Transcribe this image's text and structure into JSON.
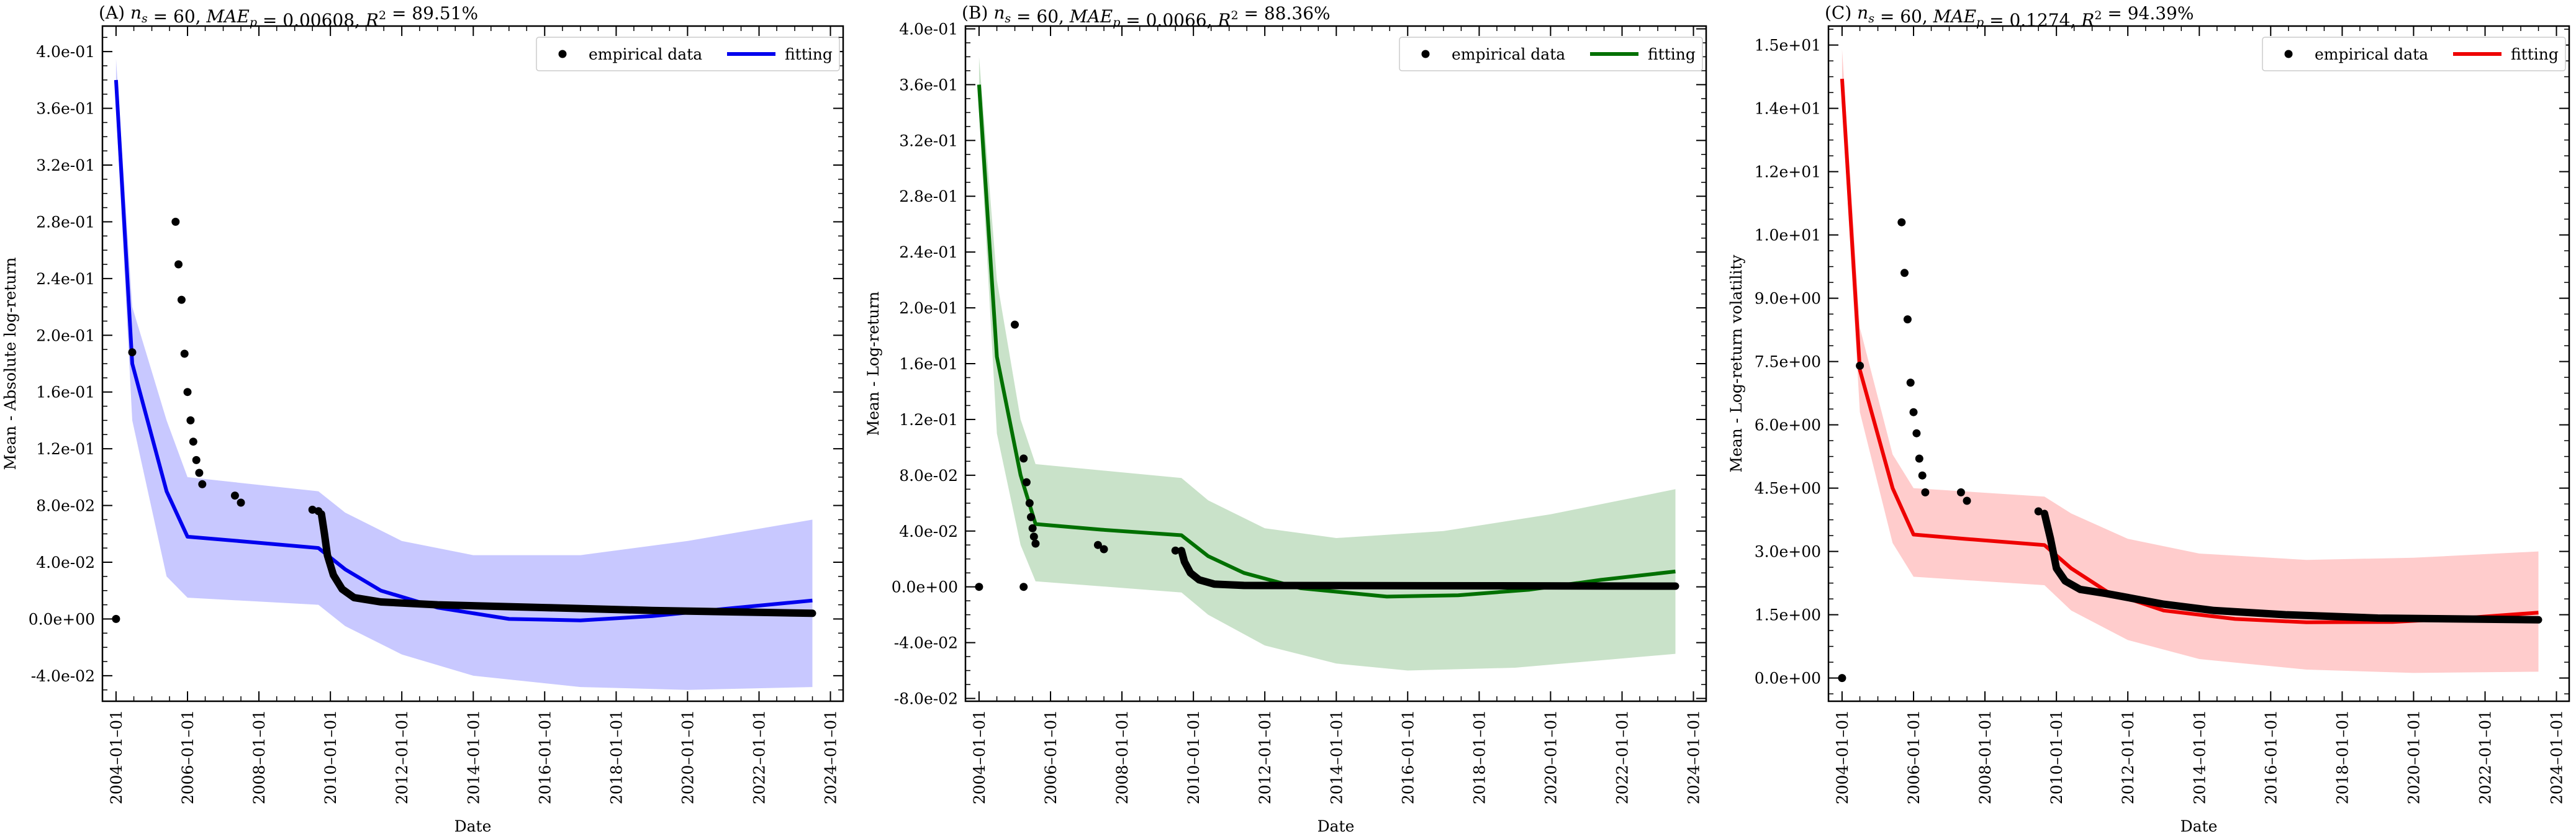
{
  "chart_data": [
    {
      "type": "line",
      "panel": "A",
      "title": "(A) n_s = 60, MAE_p = 0.00608, R^2 = 89.51%",
      "title_parts": {
        "prefix": "(A) ",
        "ns": "60",
        "mae": "0.00608",
        "r2": "89.51%"
      },
      "xlabel": "Date",
      "ylabel": "Mean - Absolute log-return",
      "xlim": [
        "2003-08-15",
        "2024-05-10"
      ],
      "ylim": [
        -0.058,
        0.418
      ],
      "x_ticks": [
        "2004-01-01",
        "2006-01-01",
        "2008-01-01",
        "2010-01-01",
        "2012-01-01",
        "2014-01-01",
        "2016-01-01",
        "2018-01-01",
        "2020-01-01",
        "2022-01-01",
        "2024-01-01"
      ],
      "x_tick_labels": [
        "2004–01–01",
        "2006–01–01",
        "2008–01–01",
        "2010–01–01",
        "2012–01–01",
        "2014–01–01",
        "2016–01–01",
        "2018–01–01",
        "2020–01–01",
        "2022–01–01",
        "2024–01–01"
      ],
      "y_ticks": [
        -0.04,
        0.0,
        0.04,
        0.08,
        0.12,
        0.16,
        0.2,
        0.24,
        0.28,
        0.32,
        0.36,
        0.4
      ],
      "y_tick_labels": [
        "-4.0e-02",
        "0.0e+00",
        "4.0e-02",
        "8.0e-02",
        "1.2e-01",
        "1.6e-01",
        "2.0e-01",
        "2.4e-01",
        "2.8e-01",
        "3.2e-01",
        "3.6e-01",
        "4.0e-01"
      ],
      "legend": {
        "position": "top-right",
        "empirical": "empirical data",
        "fitting": "fitting"
      },
      "color": "#0000ee",
      "band_color": "#c8c8ff",
      "empirical_scatter": [
        {
          "date": "2004-01-01",
          "value": 0.0
        },
        {
          "date": "2004-06-15",
          "value": 0.188
        },
        {
          "date": "2005-09-01",
          "value": 0.28
        },
        {
          "date": "2005-10-01",
          "value": 0.25
        },
        {
          "date": "2005-11-01",
          "value": 0.225
        },
        {
          "date": "2005-12-01",
          "value": 0.187
        },
        {
          "date": "2006-01-01",
          "value": 0.16
        },
        {
          "date": "2006-02-01",
          "value": 0.14
        },
        {
          "date": "2006-03-01",
          "value": 0.125
        },
        {
          "date": "2006-04-01",
          "value": 0.112
        },
        {
          "date": "2006-05-01",
          "value": 0.103
        },
        {
          "date": "2006-06-01",
          "value": 0.095
        },
        {
          "date": "2007-05-01",
          "value": 0.087
        },
        {
          "date": "2007-07-01",
          "value": 0.082
        },
        {
          "date": "2009-07-01",
          "value": 0.077
        },
        {
          "date": "2009-09-01",
          "value": 0.076
        }
      ],
      "empirical_curve": [
        {
          "date": "2009-10-01",
          "value": 0.074
        },
        {
          "date": "2009-11-01",
          "value": 0.06
        },
        {
          "date": "2009-12-01",
          "value": 0.045
        },
        {
          "date": "2010-02-01",
          "value": 0.031
        },
        {
          "date": "2010-05-01",
          "value": 0.021
        },
        {
          "date": "2010-09-01",
          "value": 0.015
        },
        {
          "date": "2011-06-01",
          "value": 0.012
        },
        {
          "date": "2013-01-01",
          "value": 0.01
        },
        {
          "date": "2016-01-01",
          "value": 0.008
        },
        {
          "date": "2019-01-01",
          "value": 0.006
        },
        {
          "date": "2023-07-01",
          "value": 0.004
        }
      ],
      "fit_line": [
        {
          "date": "2004-01-01",
          "value": 0.38
        },
        {
          "date": "2004-06-15",
          "value": 0.18
        },
        {
          "date": "2005-06-01",
          "value": 0.09
        },
        {
          "date": "2006-01-01",
          "value": 0.058
        },
        {
          "date": "2007-06-01",
          "value": 0.055
        },
        {
          "date": "2009-09-01",
          "value": 0.05
        },
        {
          "date": "2010-06-01",
          "value": 0.035
        },
        {
          "date": "2011-06-01",
          "value": 0.02
        },
        {
          "date": "2013-01-01",
          "value": 0.008
        },
        {
          "date": "2015-01-01",
          "value": 0.0
        },
        {
          "date": "2017-01-01",
          "value": -0.001
        },
        {
          "date": "2019-01-01",
          "value": 0.002
        },
        {
          "date": "2021-01-01",
          "value": 0.007
        },
        {
          "date": "2023-07-01",
          "value": 0.013
        }
      ],
      "band_upper": [
        {
          "date": "2004-01-01",
          "value": 0.395
        },
        {
          "date": "2004-06-15",
          "value": 0.22
        },
        {
          "date": "2005-06-01",
          "value": 0.14
        },
        {
          "date": "2006-01-01",
          "value": 0.1
        },
        {
          "date": "2009-09-01",
          "value": 0.09
        },
        {
          "date": "2010-06-01",
          "value": 0.075
        },
        {
          "date": "2012-01-01",
          "value": 0.055
        },
        {
          "date": "2014-01-01",
          "value": 0.045
        },
        {
          "date": "2017-01-01",
          "value": 0.045
        },
        {
          "date": "2020-01-01",
          "value": 0.055
        },
        {
          "date": "2023-07-01",
          "value": 0.07
        }
      ],
      "band_lower": [
        {
          "date": "2004-01-01",
          "value": 0.36
        },
        {
          "date": "2004-06-15",
          "value": 0.14
        },
        {
          "date": "2005-06-01",
          "value": 0.03
        },
        {
          "date": "2006-01-01",
          "value": 0.015
        },
        {
          "date": "2009-09-01",
          "value": 0.01
        },
        {
          "date": "2010-06-01",
          "value": -0.005
        },
        {
          "date": "2012-01-01",
          "value": -0.025
        },
        {
          "date": "2014-01-01",
          "value": -0.04
        },
        {
          "date": "2017-01-01",
          "value": -0.048
        },
        {
          "date": "2020-01-01",
          "value": -0.05
        },
        {
          "date": "2023-07-01",
          "value": -0.048
        }
      ]
    },
    {
      "type": "line",
      "panel": "B",
      "title": "(B) n_s = 60, MAE_p = 0.0066, R^2 = 88.36%",
      "title_parts": {
        "prefix": "(B) ",
        "ns": "60",
        "mae": "0.0066",
        "r2": "88.36%"
      },
      "xlabel": "Date",
      "ylabel": "Mean - Log-return",
      "xlim": [
        "2003-08-15",
        "2024-05-10"
      ],
      "ylim": [
        -0.082,
        0.402
      ],
      "x_ticks": [
        "2004-01-01",
        "2006-01-01",
        "2008-01-01",
        "2010-01-01",
        "2012-01-01",
        "2014-01-01",
        "2016-01-01",
        "2018-01-01",
        "2020-01-01",
        "2022-01-01",
        "2024-01-01"
      ],
      "x_tick_labels": [
        "2004–01–01",
        "2006–01–01",
        "2008–01–01",
        "2010–01–01",
        "2012–01–01",
        "2014–01–01",
        "2016–01–01",
        "2018–01–01",
        "2020–01–01",
        "2022–01–01",
        "2024–01–01"
      ],
      "y_ticks": [
        -0.08,
        -0.04,
        0.0,
        0.04,
        0.08,
        0.12,
        0.16,
        0.2,
        0.24,
        0.28,
        0.32,
        0.36,
        0.4
      ],
      "y_tick_labels": [
        "-8.0e-02",
        "-4.0e-02",
        "0.0e+00",
        "4.0e-02",
        "8.0e-02",
        "1.2e-01",
        "1.6e-01",
        "2.0e-01",
        "2.4e-01",
        "2.8e-01",
        "3.2e-01",
        "3.6e-01",
        "4.0e-01"
      ],
      "legend": {
        "position": "top-right",
        "empirical": "empirical data",
        "fitting": "fitting"
      },
      "color": "#007000",
      "band_color": "#c9e2c9",
      "empirical_scatter": [
        {
          "date": "2004-01-01",
          "value": 0.0
        },
        {
          "date": "2005-01-01",
          "value": 0.188
        },
        {
          "date": "2005-04-01",
          "value": 0.092
        },
        {
          "date": "2005-05-01",
          "value": 0.075
        },
        {
          "date": "2005-06-01",
          "value": 0.06
        },
        {
          "date": "2005-06-15",
          "value": 0.05
        },
        {
          "date": "2005-07-01",
          "value": 0.042
        },
        {
          "date": "2005-07-15",
          "value": 0.036
        },
        {
          "date": "2005-08-01",
          "value": 0.031
        },
        {
          "date": "2005-04-01",
          "value": 0.0
        },
        {
          "date": "2007-05-01",
          "value": 0.03
        },
        {
          "date": "2007-07-01",
          "value": 0.027
        },
        {
          "date": "2009-07-01",
          "value": 0.026
        }
      ],
      "empirical_curve": [
        {
          "date": "2009-09-01",
          "value": 0.026
        },
        {
          "date": "2009-10-01",
          "value": 0.018
        },
        {
          "date": "2009-12-01",
          "value": 0.01
        },
        {
          "date": "2010-03-01",
          "value": 0.005
        },
        {
          "date": "2010-08-01",
          "value": 0.002
        },
        {
          "date": "2011-06-01",
          "value": 0.001
        },
        {
          "date": "2023-07-01",
          "value": 0.0005
        }
      ],
      "fit_line": [
        {
          "date": "2004-01-01",
          "value": 0.36
        },
        {
          "date": "2004-07-01",
          "value": 0.165
        },
        {
          "date": "2005-03-01",
          "value": 0.08
        },
        {
          "date": "2005-08-01",
          "value": 0.045
        },
        {
          "date": "2007-06-01",
          "value": 0.041
        },
        {
          "date": "2009-09-01",
          "value": 0.037
        },
        {
          "date": "2010-06-01",
          "value": 0.022
        },
        {
          "date": "2011-06-01",
          "value": 0.01
        },
        {
          "date": "2013-01-01",
          "value": -0.001
        },
        {
          "date": "2015-06-01",
          "value": -0.007
        },
        {
          "date": "2017-06-01",
          "value": -0.006
        },
        {
          "date": "2019-06-01",
          "value": -0.002
        },
        {
          "date": "2021-06-01",
          "value": 0.005
        },
        {
          "date": "2023-07-01",
          "value": 0.011
        }
      ],
      "band_upper": [
        {
          "date": "2004-01-01",
          "value": 0.38
        },
        {
          "date": "2004-07-01",
          "value": 0.22
        },
        {
          "date": "2005-03-01",
          "value": 0.12
        },
        {
          "date": "2005-08-01",
          "value": 0.088
        },
        {
          "date": "2009-09-01",
          "value": 0.078
        },
        {
          "date": "2010-06-01",
          "value": 0.062
        },
        {
          "date": "2012-01-01",
          "value": 0.042
        },
        {
          "date": "2014-01-01",
          "value": 0.035
        },
        {
          "date": "2017-01-01",
          "value": 0.04
        },
        {
          "date": "2020-01-01",
          "value": 0.052
        },
        {
          "date": "2023-07-01",
          "value": 0.07
        }
      ],
      "band_lower": [
        {
          "date": "2004-01-01",
          "value": 0.34
        },
        {
          "date": "2004-07-01",
          "value": 0.11
        },
        {
          "date": "2005-03-01",
          "value": 0.03
        },
        {
          "date": "2005-08-01",
          "value": 0.004
        },
        {
          "date": "2009-09-01",
          "value": -0.004
        },
        {
          "date": "2010-06-01",
          "value": -0.02
        },
        {
          "date": "2012-01-01",
          "value": -0.042
        },
        {
          "date": "2014-01-01",
          "value": -0.055
        },
        {
          "date": "2016-01-01",
          "value": -0.06
        },
        {
          "date": "2019-01-01",
          "value": -0.058
        },
        {
          "date": "2023-07-01",
          "value": -0.048
        }
      ]
    },
    {
      "type": "line",
      "panel": "C",
      "title": "(C) n_s = 60, MAE_p = 0.1274, R^2 = 94.39%",
      "title_parts": {
        "prefix": "(C) ",
        "ns": "60",
        "mae": "0.1274",
        "r2": "94.39%"
      },
      "xlabel": "Date",
      "ylabel": "Mean - Log-return volatility",
      "xlim": [
        "2003-08-15",
        "2024-05-10"
      ],
      "ylim": [
        -0.55,
        15.45
      ],
      "x_ticks": [
        "2004-01-01",
        "2006-01-01",
        "2008-01-01",
        "2010-01-01",
        "2012-01-01",
        "2014-01-01",
        "2016-01-01",
        "2018-01-01",
        "2020-01-01",
        "2022-01-01",
        "2024-01-01"
      ],
      "x_tick_labels": [
        "2004–01–01",
        "2006–01–01",
        "2008–01–01",
        "2010–01–01",
        "2012–01–01",
        "2014–01–01",
        "2016–01–01",
        "2018–01–01",
        "2020–01–01",
        "2022–01–01",
        "2024–01–01"
      ],
      "y_ticks": [
        0.0,
        1.5,
        3.0,
        4.5,
        6.0,
        7.5,
        9.0,
        10.5,
        12.0,
        13.5,
        15.0
      ],
      "y_tick_labels": [
        "0.0e+00",
        "1.5e+00",
        "3.0e+00",
        "4.5e+00",
        "6.0e+00",
        "7.5e+00",
        "9.0e+00",
        "1.0e+01",
        "1.2e+01",
        "1.4e+01",
        "1.5e+01"
      ],
      "legend": {
        "position": "top-right",
        "empirical": "empirical data",
        "fitting": "fitting"
      },
      "color": "#ee0000",
      "band_color": "#ffcccc",
      "empirical_scatter": [
        {
          "date": "2004-01-01",
          "value": 0.0
        },
        {
          "date": "2004-07-01",
          "value": 7.4
        },
        {
          "date": "2005-09-01",
          "value": 10.8
        },
        {
          "date": "2005-10-01",
          "value": 9.6
        },
        {
          "date": "2005-11-01",
          "value": 8.5
        },
        {
          "date": "2005-12-01",
          "value": 7.0
        },
        {
          "date": "2006-01-01",
          "value": 6.3
        },
        {
          "date": "2006-02-01",
          "value": 5.8
        },
        {
          "date": "2006-03-01",
          "value": 5.2
        },
        {
          "date": "2006-04-01",
          "value": 4.8
        },
        {
          "date": "2006-05-01",
          "value": 4.4
        },
        {
          "date": "2007-05-01",
          "value": 4.4
        },
        {
          "date": "2007-07-01",
          "value": 4.2
        },
        {
          "date": "2009-07-01",
          "value": 3.95
        }
      ],
      "empirical_curve": [
        {
          "date": "2009-09-01",
          "value": 3.9
        },
        {
          "date": "2009-11-01",
          "value": 3.3
        },
        {
          "date": "2010-01-01",
          "value": 2.6
        },
        {
          "date": "2010-04-01",
          "value": 2.3
        },
        {
          "date": "2010-09-01",
          "value": 2.1
        },
        {
          "date": "2011-06-01",
          "value": 2.0
        },
        {
          "date": "2013-01-01",
          "value": 1.75
        },
        {
          "date": "2014-06-01",
          "value": 1.6
        },
        {
          "date": "2016-06-01",
          "value": 1.5
        },
        {
          "date": "2019-01-01",
          "value": 1.42
        },
        {
          "date": "2023-07-01",
          "value": 1.38
        }
      ],
      "fit_line": [
        {
          "date": "2004-01-01",
          "value": 14.2
        },
        {
          "date": "2004-07-01",
          "value": 7.3
        },
        {
          "date": "2005-06-01",
          "value": 4.5
        },
        {
          "date": "2006-01-01",
          "value": 3.4
        },
        {
          "date": "2007-06-01",
          "value": 3.3
        },
        {
          "date": "2009-09-01",
          "value": 3.15
        },
        {
          "date": "2010-06-01",
          "value": 2.6
        },
        {
          "date": "2011-06-01",
          "value": 2.05
        },
        {
          "date": "2013-01-01",
          "value": 1.6
        },
        {
          "date": "2015-01-01",
          "value": 1.4
        },
        {
          "date": "2017-01-01",
          "value": 1.32
        },
        {
          "date": "2019-06-01",
          "value": 1.33
        },
        {
          "date": "2021-06-01",
          "value": 1.42
        },
        {
          "date": "2023-07-01",
          "value": 1.55
        }
      ],
      "band_upper": [
        {
          "date": "2004-01-01",
          "value": 14.9
        },
        {
          "date": "2004-07-01",
          "value": 8.3
        },
        {
          "date": "2005-06-01",
          "value": 5.3
        },
        {
          "date": "2006-01-01",
          "value": 4.5
        },
        {
          "date": "2009-09-01",
          "value": 4.3
        },
        {
          "date": "2010-06-01",
          "value": 3.9
        },
        {
          "date": "2012-01-01",
          "value": 3.3
        },
        {
          "date": "2014-01-01",
          "value": 2.95
        },
        {
          "date": "2017-01-01",
          "value": 2.8
        },
        {
          "date": "2020-01-01",
          "value": 2.85
        },
        {
          "date": "2023-07-01",
          "value": 3.0
        }
      ],
      "band_lower": [
        {
          "date": "2004-01-01",
          "value": 13.6
        },
        {
          "date": "2004-07-01",
          "value": 6.3
        },
        {
          "date": "2005-06-01",
          "value": 3.2
        },
        {
          "date": "2006-01-01",
          "value": 2.4
        },
        {
          "date": "2009-09-01",
          "value": 2.2
        },
        {
          "date": "2010-06-01",
          "value": 1.6
        },
        {
          "date": "2012-01-01",
          "value": 0.9
        },
        {
          "date": "2014-01-01",
          "value": 0.45
        },
        {
          "date": "2017-01-01",
          "value": 0.2
        },
        {
          "date": "2020-01-01",
          "value": 0.12
        },
        {
          "date": "2023-07-01",
          "value": 0.15
        }
      ]
    }
  ]
}
